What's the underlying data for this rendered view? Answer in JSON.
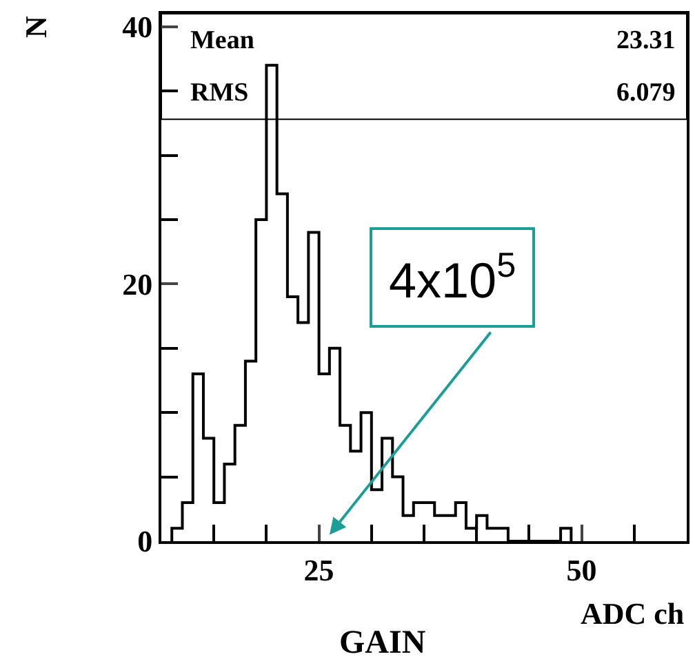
{
  "chart_data": {
    "type": "histogram",
    "xlabel": "ADC ch",
    "ylabel": "N",
    "bins": [
      11,
      12,
      13,
      14,
      15,
      16,
      17,
      18,
      19,
      20,
      21,
      22,
      23,
      24,
      25,
      26,
      27,
      28,
      29,
      30,
      31,
      32,
      33,
      34,
      35,
      36,
      37,
      38,
      39,
      40,
      41,
      42,
      43,
      44,
      45,
      46,
      47,
      48,
      49
    ],
    "values": [
      1,
      3,
      13,
      8,
      3,
      6,
      9,
      14,
      25,
      37,
      27,
      19,
      17,
      24,
      13,
      15,
      9,
      7,
      10,
      4,
      8,
      5,
      2,
      3,
      3,
      2,
      2,
      3,
      1,
      2,
      1,
      1,
      0,
      0,
      0,
      0,
      0,
      1
    ],
    "color": "#000000",
    "xlim": [
      10,
      60
    ],
    "xticks": [
      25,
      50
    ],
    "ylim": [
      0,
      41
    ],
    "yticks": [
      0,
      20,
      40
    ],
    "grid": false,
    "legend": false,
    "marker": "none",
    "line_style": "solid",
    "annotations": [
      "Mean",
      "23.31",
      "RMS",
      "6.079",
      "GAIN",
      "4x10$^{5}$"
    ]
  }
}
